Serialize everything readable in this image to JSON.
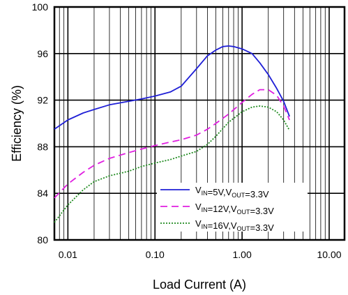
{
  "chart_data": {
    "type": "line",
    "title": "",
    "xlabel": "Load Current (A)",
    "ylabel": "Efficiency (%)",
    "xscale": "log",
    "xlim": [
      0.007,
      15
    ],
    "ylim": [
      80,
      100
    ],
    "x_tick_labels": [
      "0.01",
      "0.10",
      "1.00",
      "10.00"
    ],
    "y_tick_labels": [
      "80",
      "84",
      "88",
      "92",
      "96",
      "100"
    ],
    "grid": true,
    "legend_position": "bottom-right",
    "series": [
      {
        "legend": {
          "v": "V",
          "vsub": "IN",
          "mid": "=5V,V",
          "osub": "OUT",
          "tail": "=3.3V"
        },
        "color": "#1f1fd6",
        "dash": "solid",
        "x": [
          0.007,
          0.01,
          0.015,
          0.02,
          0.03,
          0.05,
          0.07,
          0.1,
          0.15,
          0.2,
          0.3,
          0.4,
          0.5,
          0.6,
          0.7,
          0.8,
          1.0,
          1.3,
          1.6,
          2.0,
          2.5,
          3.0,
          3.5
        ],
        "y": [
          89.5,
          90.3,
          90.9,
          91.2,
          91.6,
          91.9,
          92.1,
          92.35,
          92.7,
          93.2,
          94.7,
          95.8,
          96.3,
          96.6,
          96.65,
          96.6,
          96.4,
          96.0,
          95.2,
          94.2,
          93.0,
          91.9,
          90.6
        ]
      },
      {
        "legend": {
          "v": "V",
          "vsub": "IN",
          "mid": "=12V,V",
          "osub": "OUT",
          "tail": "=3.3V"
        },
        "color": "#e01fe0",
        "dash": "dashed",
        "x": [
          0.007,
          0.01,
          0.015,
          0.02,
          0.03,
          0.05,
          0.07,
          0.1,
          0.15,
          0.2,
          0.3,
          0.4,
          0.5,
          0.7,
          1.0,
          1.3,
          1.6,
          2.0,
          2.5,
          3.0,
          3.5
        ],
        "y": [
          83.6,
          84.8,
          85.8,
          86.4,
          87.0,
          87.5,
          87.8,
          88.1,
          88.4,
          88.6,
          89.0,
          89.5,
          90.0,
          90.8,
          91.8,
          92.5,
          92.9,
          92.9,
          92.4,
          91.5,
          90.3
        ]
      },
      {
        "legend": {
          "v": "V",
          "vsub": "IN",
          "mid": "=16V,V",
          "osub": "OUT",
          "tail": "=3.3V"
        },
        "color": "#1f8a1f",
        "dash": "dotted",
        "x": [
          0.007,
          0.01,
          0.015,
          0.02,
          0.03,
          0.05,
          0.07,
          0.1,
          0.15,
          0.2,
          0.3,
          0.4,
          0.5,
          0.7,
          1.0,
          1.3,
          1.6,
          2.0,
          2.5,
          3.0,
          3.5
        ],
        "y": [
          81.5,
          83.0,
          84.3,
          85.0,
          85.5,
          85.9,
          86.3,
          86.6,
          86.9,
          87.2,
          87.6,
          88.2,
          88.9,
          90.1,
          91.0,
          91.4,
          91.5,
          91.4,
          91.0,
          90.3,
          89.4
        ]
      }
    ]
  }
}
